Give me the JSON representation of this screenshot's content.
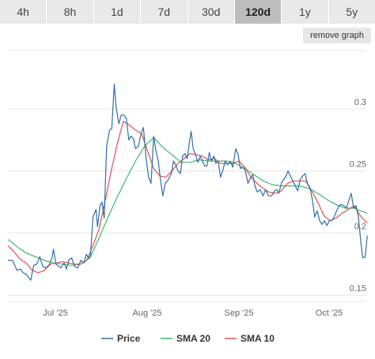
{
  "timeframes": {
    "tabs": [
      "4h",
      "8h",
      "1d",
      "7d",
      "30d",
      "120d",
      "1y",
      "5y"
    ],
    "selected": "120d"
  },
  "remove_graph_label": "remove graph",
  "chart_data": {
    "type": "line",
    "title": "",
    "xlabel": "",
    "ylabel": "",
    "x_tick_labels": [
      "Jul '25",
      "Aug '25",
      "Sep '25",
      "Oct '25"
    ],
    "y_tick_labels": [
      "0.15",
      "0.2",
      "0.25",
      "0.3"
    ],
    "y_ticks": [
      0.15,
      0.2,
      0.25,
      0.3
    ],
    "ylim": [
      0.145,
      0.347
    ],
    "x_domain_days": [
      0,
      120
    ],
    "grid": true,
    "legend_position": "bottom",
    "series": [
      {
        "name": "Price",
        "color": "#2f6fab",
        "points": [
          [
            0.0,
            0.178
          ],
          [
            1.5,
            0.178
          ],
          [
            3.0,
            0.17
          ],
          [
            4.2,
            0.171
          ],
          [
            5.0,
            0.168
          ],
          [
            6.0,
            0.167
          ],
          [
            7.5,
            0.162
          ],
          [
            8.5,
            0.174
          ],
          [
            9.5,
            0.175
          ],
          [
            10.5,
            0.181
          ],
          [
            11.5,
            0.173
          ],
          [
            12.5,
            0.172
          ],
          [
            13.5,
            0.174
          ],
          [
            14.5,
            0.18
          ],
          [
            15.0,
            0.187
          ],
          [
            15.8,
            0.175
          ],
          [
            16.8,
            0.173
          ],
          [
            17.5,
            0.172
          ],
          [
            18.5,
            0.176
          ],
          [
            19.3,
            0.171
          ],
          [
            20.0,
            0.178
          ],
          [
            21.0,
            0.18
          ],
          [
            22.0,
            0.173
          ],
          [
            23.0,
            0.172
          ],
          [
            24.0,
            0.178
          ],
          [
            25.0,
            0.176
          ],
          [
            25.8,
            0.183
          ],
          [
            26.5,
            0.18
          ],
          [
            27.2,
            0.182
          ],
          [
            28.0,
            0.213
          ],
          [
            29.0,
            0.219
          ],
          [
            29.5,
            0.205
          ],
          [
            30.3,
            0.222
          ],
          [
            31.0,
            0.225
          ],
          [
            31.7,
            0.212
          ],
          [
            32.5,
            0.27
          ],
          [
            33.5,
            0.283
          ],
          [
            34.2,
            0.284
          ],
          [
            35.0,
            0.32
          ],
          [
            35.6,
            0.302
          ],
          [
            36.5,
            0.288
          ],
          [
            37.3,
            0.295
          ],
          [
            38.2,
            0.295
          ],
          [
            39.0,
            0.292
          ],
          [
            39.8,
            0.275
          ],
          [
            40.5,
            0.278
          ],
          [
            41.3,
            0.276
          ],
          [
            42.0,
            0.268
          ],
          [
            43.0,
            0.27
          ],
          [
            43.8,
            0.28
          ],
          [
            44.6,
            0.285
          ],
          [
            45.5,
            0.26
          ],
          [
            46.3,
            0.245
          ],
          [
            47.1,
            0.24
          ],
          [
            48.0,
            0.278
          ],
          [
            48.8,
            0.265
          ],
          [
            49.5,
            0.258
          ],
          [
            50.2,
            0.243
          ],
          [
            51.0,
            0.23
          ],
          [
            51.8,
            0.24
          ],
          [
            52.8,
            0.243
          ],
          [
            53.8,
            0.248
          ],
          [
            54.5,
            0.258
          ],
          [
            55.2,
            0.255
          ],
          [
            56.0,
            0.25
          ],
          [
            56.8,
            0.248
          ],
          [
            57.5,
            0.262
          ],
          [
            58.3,
            0.264
          ],
          [
            59.0,
            0.26
          ],
          [
            59.7,
            0.272
          ],
          [
            60.3,
            0.282
          ],
          [
            61.0,
            0.268
          ],
          [
            61.8,
            0.263
          ],
          [
            62.5,
            0.257
          ],
          [
            63.3,
            0.262
          ],
          [
            64.0,
            0.258
          ],
          [
            64.8,
            0.254
          ],
          [
            65.5,
            0.254
          ],
          [
            66.3,
            0.265
          ],
          [
            67.0,
            0.258
          ],
          [
            67.8,
            0.262
          ],
          [
            68.5,
            0.256
          ],
          [
            69.2,
            0.258
          ],
          [
            70.0,
            0.245
          ],
          [
            70.8,
            0.251
          ],
          [
            71.5,
            0.258
          ],
          [
            72.3,
            0.255
          ],
          [
            73.2,
            0.258
          ],
          [
            74.0,
            0.253
          ],
          [
            75.0,
            0.268
          ],
          [
            75.8,
            0.263
          ],
          [
            76.5,
            0.252
          ],
          [
            77.3,
            0.253
          ],
          [
            78.2,
            0.25
          ],
          [
            79.0,
            0.24
          ],
          [
            79.8,
            0.244
          ],
          [
            80.6,
            0.247
          ],
          [
            81.3,
            0.238
          ],
          [
            82.1,
            0.233
          ],
          [
            83.0,
            0.235
          ],
          [
            84.0,
            0.23
          ],
          [
            84.8,
            0.235
          ],
          [
            85.8,
            0.23
          ],
          [
            86.8,
            0.23
          ],
          [
            87.8,
            0.234
          ],
          [
            88.5,
            0.235
          ],
          [
            89.2,
            0.232
          ],
          [
            90.0,
            0.24
          ],
          [
            90.7,
            0.243
          ],
          [
            91.4,
            0.245
          ],
          [
            92.2,
            0.25
          ],
          [
            93.0,
            0.246
          ],
          [
            93.8,
            0.242
          ],
          [
            94.6,
            0.238
          ],
          [
            95.4,
            0.234
          ],
          [
            96.2,
            0.243
          ],
          [
            97.0,
            0.246
          ],
          [
            97.8,
            0.248
          ],
          [
            98.6,
            0.24
          ],
          [
            99.4,
            0.237
          ],
          [
            100.2,
            0.227
          ],
          [
            101.0,
            0.213
          ],
          [
            101.8,
            0.218
          ],
          [
            102.6,
            0.21
          ],
          [
            103.4,
            0.207
          ],
          [
            104.2,
            0.21
          ],
          [
            105.0,
            0.206
          ],
          [
            105.8,
            0.21
          ],
          [
            106.6,
            0.21
          ],
          [
            107.4,
            0.213
          ],
          [
            108.2,
            0.218
          ],
          [
            109.0,
            0.222
          ],
          [
            109.8,
            0.223
          ],
          [
            110.6,
            0.222
          ],
          [
            111.4,
            0.22
          ],
          [
            112.2,
            0.226
          ],
          [
            113.0,
            0.232
          ],
          [
            113.8,
            0.22
          ],
          [
            114.6,
            0.222
          ],
          [
            115.4,
            0.213
          ],
          [
            116.2,
            0.192
          ],
          [
            116.8,
            0.18
          ],
          [
            117.6,
            0.181
          ],
          [
            118.3,
            0.198
          ]
        ]
      },
      {
        "name": "SMA 20",
        "color": "#3fb86a",
        "points": [
          [
            0.0,
            0.195
          ],
          [
            3.0,
            0.189
          ],
          [
            6.0,
            0.184
          ],
          [
            9.0,
            0.181
          ],
          [
            12.0,
            0.178
          ],
          [
            15.0,
            0.176
          ],
          [
            18.0,
            0.175
          ],
          [
            21.0,
            0.174
          ],
          [
            24.0,
            0.175
          ],
          [
            27.0,
            0.18
          ],
          [
            30.0,
            0.196
          ],
          [
            33.0,
            0.213
          ],
          [
            36.0,
            0.229
          ],
          [
            39.0,
            0.244
          ],
          [
            42.0,
            0.258
          ],
          [
            45.0,
            0.27
          ],
          [
            48.0,
            0.277
          ],
          [
            51.0,
            0.269
          ],
          [
            54.0,
            0.263
          ],
          [
            57.0,
            0.257
          ],
          [
            60.0,
            0.257
          ],
          [
            63.0,
            0.259
          ],
          [
            66.0,
            0.258
          ],
          [
            69.0,
            0.258
          ],
          [
            72.0,
            0.258
          ],
          [
            75.0,
            0.256
          ],
          [
            78.0,
            0.252
          ],
          [
            81.0,
            0.247
          ],
          [
            84.0,
            0.242
          ],
          [
            87.0,
            0.239
          ],
          [
            90.0,
            0.238
          ],
          [
            93.0,
            0.238
          ],
          [
            96.0,
            0.238
          ],
          [
            99.0,
            0.236
          ],
          [
            102.0,
            0.232
          ],
          [
            105.0,
            0.227
          ],
          [
            108.0,
            0.223
          ],
          [
            111.0,
            0.22
          ],
          [
            114.0,
            0.22
          ],
          [
            116.0,
            0.218
          ],
          [
            118.3,
            0.216
          ]
        ]
      },
      {
        "name": "SMA 10",
        "color": "#e44f4f",
        "points": [
          [
            0.0,
            0.19
          ],
          [
            2.0,
            0.185
          ],
          [
            4.0,
            0.179
          ],
          [
            6.0,
            0.176
          ],
          [
            8.0,
            0.17
          ],
          [
            10.0,
            0.168
          ],
          [
            12.0,
            0.17
          ],
          [
            14.0,
            0.175
          ],
          [
            16.0,
            0.176
          ],
          [
            18.0,
            0.177
          ],
          [
            20.0,
            0.176
          ],
          [
            22.0,
            0.175
          ],
          [
            24.0,
            0.175
          ],
          [
            26.0,
            0.178
          ],
          [
            28.0,
            0.19
          ],
          [
            30.0,
            0.203
          ],
          [
            32.0,
            0.226
          ],
          [
            34.0,
            0.25
          ],
          [
            36.0,
            0.272
          ],
          [
            38.0,
            0.29
          ],
          [
            40.0,
            0.287
          ],
          [
            42.0,
            0.283
          ],
          [
            44.0,
            0.28
          ],
          [
            46.0,
            0.266
          ],
          [
            48.0,
            0.252
          ],
          [
            50.0,
            0.246
          ],
          [
            52.0,
            0.245
          ],
          [
            54.0,
            0.25
          ],
          [
            56.0,
            0.256
          ],
          [
            58.0,
            0.26
          ],
          [
            60.0,
            0.264
          ],
          [
            62.0,
            0.263
          ],
          [
            64.0,
            0.262
          ],
          [
            66.0,
            0.259
          ],
          [
            68.0,
            0.26
          ],
          [
            70.0,
            0.256
          ],
          [
            72.0,
            0.256
          ],
          [
            74.0,
            0.256
          ],
          [
            76.0,
            0.258
          ],
          [
            78.0,
            0.253
          ],
          [
            80.0,
            0.245
          ],
          [
            82.0,
            0.24
          ],
          [
            84.0,
            0.236
          ],
          [
            86.0,
            0.233
          ],
          [
            88.0,
            0.232
          ],
          [
            90.0,
            0.234
          ],
          [
            92.0,
            0.24
          ],
          [
            94.0,
            0.242
          ],
          [
            96.0,
            0.242
          ],
          [
            98.0,
            0.242
          ],
          [
            100.0,
            0.234
          ],
          [
            102.0,
            0.225
          ],
          [
            104.0,
            0.214
          ],
          [
            106.0,
            0.21
          ],
          [
            108.0,
            0.212
          ],
          [
            110.0,
            0.216
          ],
          [
            112.0,
            0.219
          ],
          [
            114.0,
            0.222
          ],
          [
            116.0,
            0.214
          ],
          [
            118.3,
            0.208
          ]
        ]
      }
    ]
  }
}
